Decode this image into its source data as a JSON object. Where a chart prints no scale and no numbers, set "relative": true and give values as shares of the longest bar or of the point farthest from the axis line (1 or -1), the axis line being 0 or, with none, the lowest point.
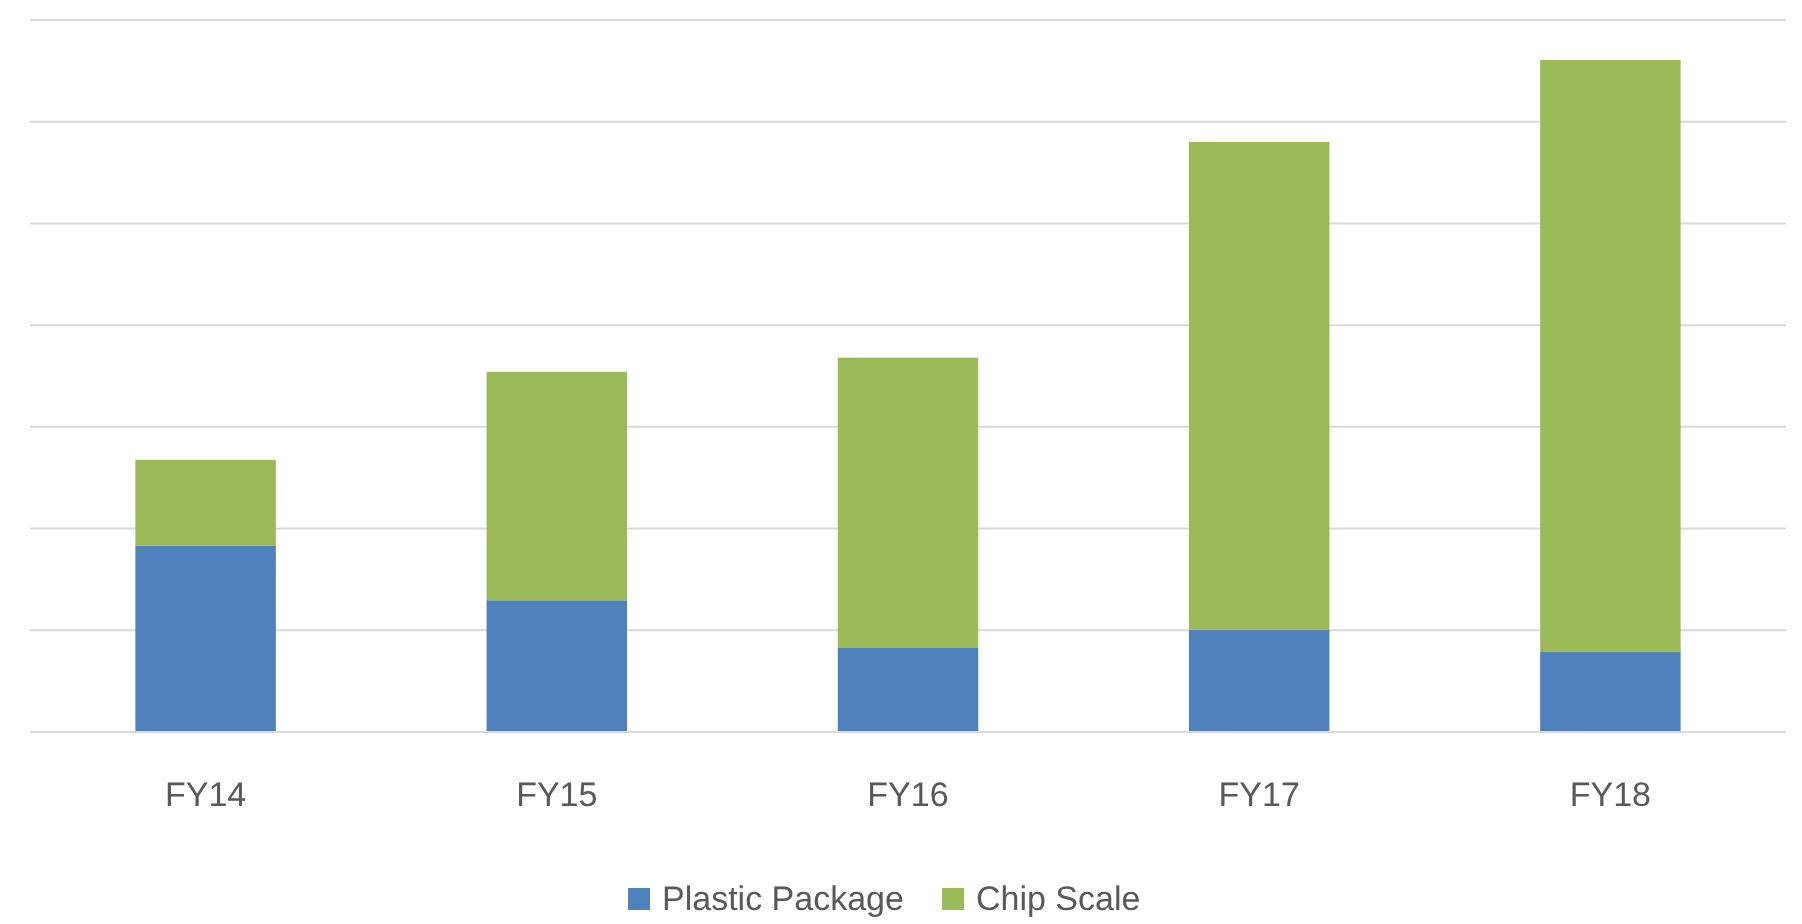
{
  "chart_data": {
    "type": "bar",
    "stacked": true,
    "relative": true,
    "categories": [
      "FY14",
      "FY15",
      "FY16",
      "FY17",
      "FY18"
    ],
    "series": [
      {
        "name": "Plastic Package",
        "color": "#4f81bd",
        "values": [
          0.277,
          0.196,
          0.125,
          0.152,
          0.119
        ]
      },
      {
        "name": "Chip Scale",
        "color": "#9bbb59",
        "values": [
          0.128,
          0.34,
          0.432,
          0.726,
          0.881
        ]
      }
    ],
    "grid": "y",
    "legend": "bottom"
  }
}
